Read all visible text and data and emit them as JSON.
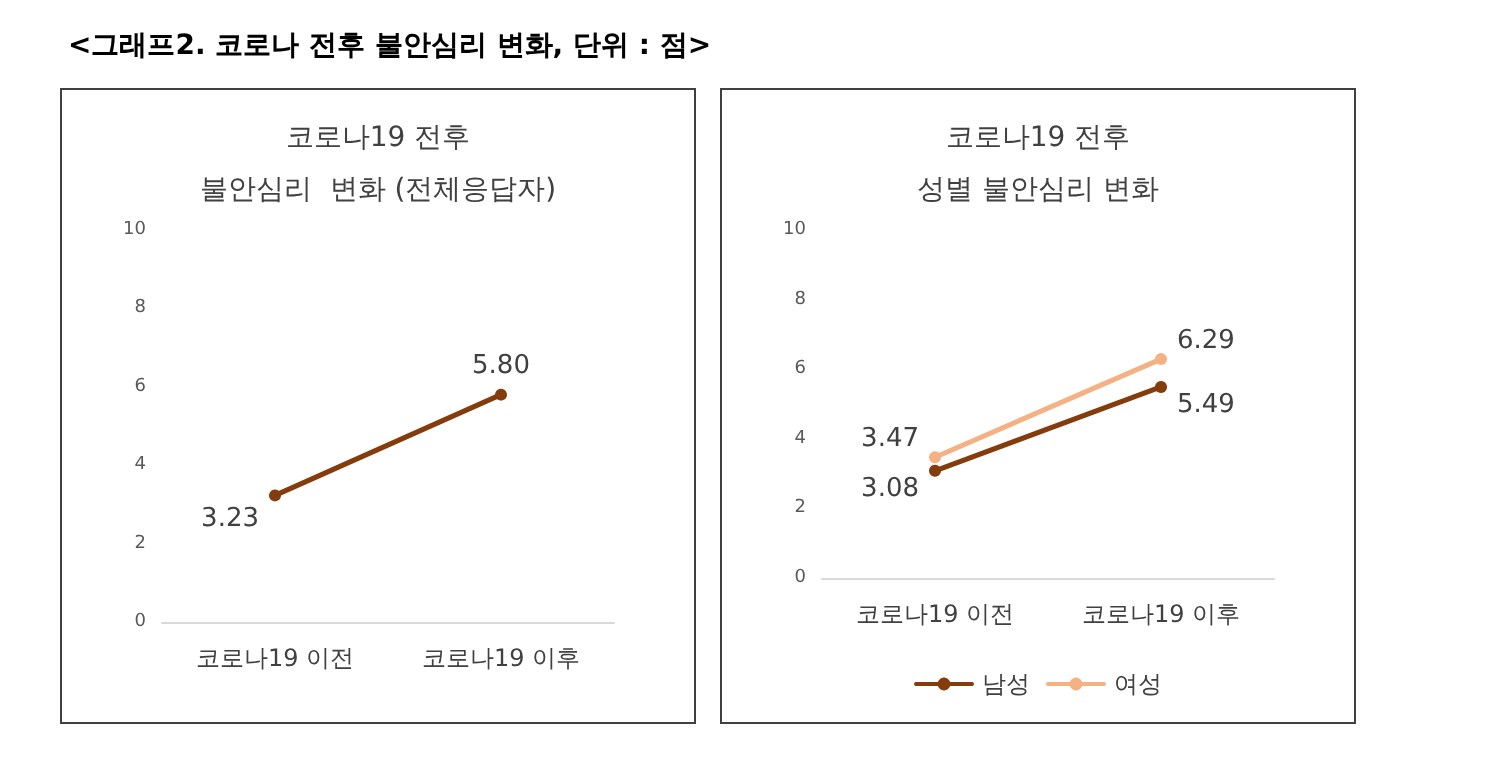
{
  "chart_data": [
    {
      "type": "line",
      "title": "코로나19 전후\n불안심리  변화 (전체응답자)",
      "annotations": [
        "<그래프2. 코로나 전후 불안심리 변화, 단위 : 점>"
      ],
      "categories": [
        "코로나19 이전",
        "코로나19 이후"
      ],
      "series": [
        {
          "color": "#843c0c",
          "values": [
            3.23,
            5.8
          ],
          "value_labels": [
            "3.23",
            "5.80"
          ]
        }
      ],
      "ylim": [
        0,
        10
      ],
      "yticks": [
        0,
        2,
        4,
        6,
        8,
        10
      ],
      "grid": false,
      "marker": "circle"
    },
    {
      "type": "line",
      "title": "코로나19 전후\n성별 불안심리 변화",
      "categories": [
        "코로나19 이전",
        "코로나19 이후"
      ],
      "series": [
        {
          "name": "남성",
          "color": "#843c0c",
          "values": [
            3.08,
            5.49
          ],
          "value_labels": [
            "3.08",
            "5.49"
          ]
        },
        {
          "name": "여성",
          "color": "#f4b183",
          "values": [
            3.47,
            6.29
          ],
          "value_labels": [
            "3.47",
            "6.29"
          ]
        }
      ],
      "ylim": [
        0,
        10
      ],
      "yticks": [
        0,
        2,
        4,
        6,
        8,
        10
      ],
      "grid": false,
      "marker": "circle",
      "legend": "bottom"
    }
  ]
}
